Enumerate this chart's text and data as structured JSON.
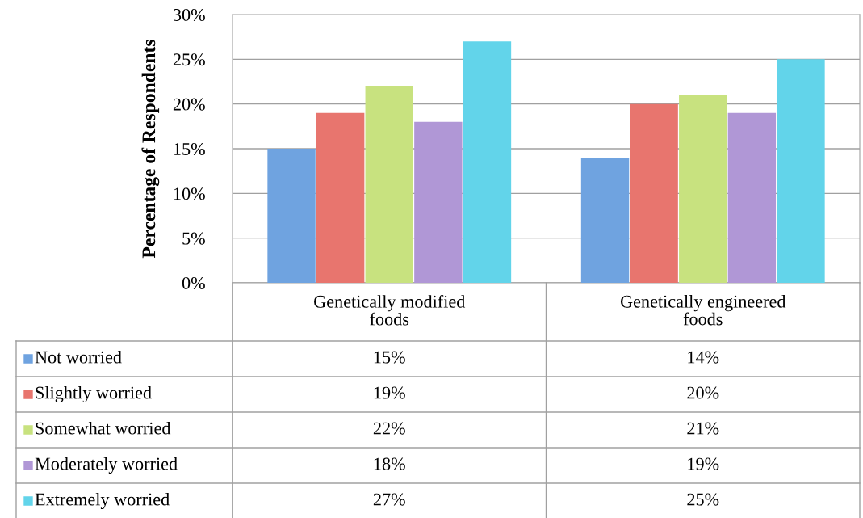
{
  "chart_data": {
    "type": "bar",
    "ylabel": "Percentage of Respondents",
    "categories": [
      "Genetically modified foods",
      "Genetically engineered foods"
    ],
    "series": [
      {
        "name": "Not worried",
        "color": "#6fa3e0",
        "values": [
          15,
          14
        ],
        "value_labels": [
          "15%",
          "14%"
        ]
      },
      {
        "name": "Slightly worried",
        "color": "#e8756e",
        "values": [
          19,
          20
        ],
        "value_labels": [
          "19%",
          "20%"
        ]
      },
      {
        "name": "Somewhat worried",
        "color": "#c8e27f",
        "values": [
          22,
          21
        ],
        "value_labels": [
          "22%",
          "21%"
        ]
      },
      {
        "name": "Moderately worried",
        "color": "#b097d6",
        "values": [
          18,
          19
        ],
        "value_labels": [
          "18%",
          "19%"
        ]
      },
      {
        "name": "Extremely worried",
        "color": "#62d4ea",
        "values": [
          27,
          25
        ],
        "value_labels": [
          "27%",
          "25%"
        ]
      }
    ],
    "ylim": [
      0,
      30
    ],
    "yticks": [
      {
        "value": 0,
        "label": "0%"
      },
      {
        "value": 5,
        "label": "5%"
      },
      {
        "value": 10,
        "label": "10%"
      },
      {
        "value": 15,
        "label": "15%"
      },
      {
        "value": 20,
        "label": "20%"
      },
      {
        "value": 25,
        "label": "25%"
      },
      {
        "value": 30,
        "label": "30%"
      }
    ],
    "grid": "y",
    "legend": "bottom"
  }
}
